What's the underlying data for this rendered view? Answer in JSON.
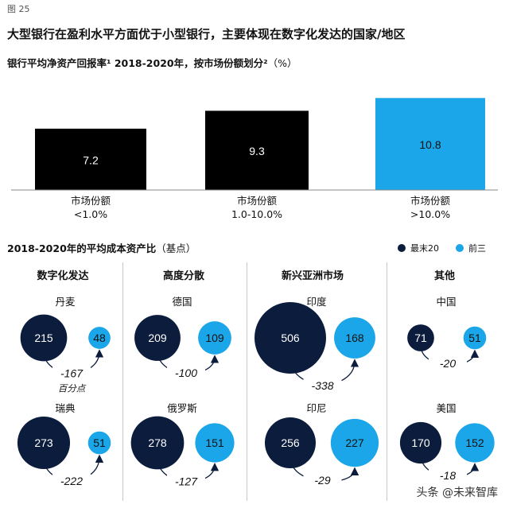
{
  "figure_label": "图 25",
  "main_title": "大型银行在盈利水平方面优于小型银行，主要体现在数字化发达的国家/地区",
  "subtitle": "银行平均净资产回报率¹ 2018-2020年，按市场份额划分²",
  "subtitle_unit": "（%）",
  "colors": {
    "dark": "#0b1c3d",
    "light": "#1aa6e8",
    "black": "#000000",
    "axis": "#888888"
  },
  "chart_data": [
    {
      "type": "bar",
      "title": "银行平均净资产回报率¹ 2018-2020年，按市场份额划分²（%）",
      "categories": [
        "市场份额\n<1.0%",
        "市场份额\n1.0-10.0%",
        "市场份额\n>10.0%"
      ],
      "category_lines": [
        [
          "市场份额",
          "<1.0%"
        ],
        [
          "市场份额",
          "1.0-10.0%"
        ],
        [
          "市场份额",
          ">10.0%"
        ]
      ],
      "values": [
        7.2,
        9.3,
        10.8
      ],
      "labels": [
        "7.2",
        "9.3",
        "10.8"
      ],
      "colors": [
        "#000000",
        "#000000",
        "#1aa6e8"
      ],
      "ylim": [
        0,
        11.2
      ]
    },
    {
      "type": "bubble",
      "title": "2018-2020年的平均成本资产比（基点）",
      "series": [
        {
          "name": "最末20",
          "color": "#0b1c3d"
        },
        {
          "name": "前三",
          "color": "#1aa6e8"
        }
      ],
      "groups": [
        {
          "name": "数字化发达",
          "countries": [
            {
              "name": "丹麦",
              "bottom20": 215,
              "top3": 48,
              "diff": "-167",
              "diff_note": "百分点"
            },
            {
              "name": "瑞典",
              "bottom20": 273,
              "top3": 51,
              "diff": "-222"
            }
          ]
        },
        {
          "name": "高度分散",
          "countries": [
            {
              "name": "德国",
              "bottom20": 209,
              "top3": 109,
              "diff": "-100"
            },
            {
              "name": "俄罗斯",
              "bottom20": 278,
              "top3": 151,
              "diff": "-127"
            }
          ]
        },
        {
          "name": "新兴亚洲市场",
          "countries": [
            {
              "name": "印度",
              "bottom20": 506,
              "top3": 168,
              "diff": "-338"
            },
            {
              "name": "印尼",
              "bottom20": 256,
              "top3": 227,
              "diff": "-29"
            }
          ]
        },
        {
          "name": "其他",
          "countries": [
            {
              "name": "中国",
              "bottom20": 71,
              "top3": 51,
              "diff": "-20"
            },
            {
              "name": "美国",
              "bottom20": 170,
              "top3": 152,
              "diff": "-18"
            }
          ]
        }
      ]
    }
  ],
  "cost_title": "2018-2020年的平均成本资产比",
  "cost_unit": "（基点）",
  "legend": {
    "bottom20": "最末20",
    "top3": "前三"
  },
  "watermark": "头条 @未来智库"
}
